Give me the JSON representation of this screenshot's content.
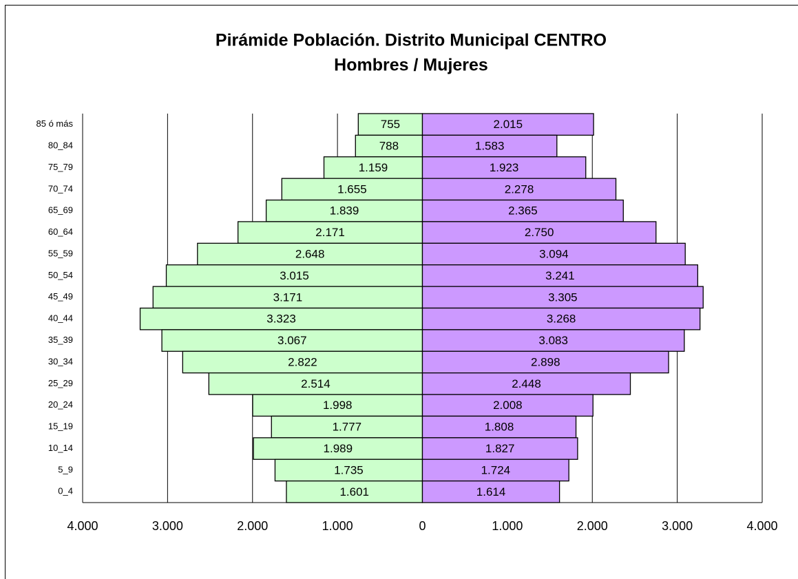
{
  "chart_data": {
    "type": "pyramid",
    "title": "Pirámide Población. Distrito Municipal CENTRO",
    "subtitle": "Hombres / Mujeres",
    "categories": [
      "85 ó más",
      "80_84",
      "75_79",
      "70_74",
      "65_69",
      "60_64",
      "55_59",
      "50_54",
      "45_49",
      "40_44",
      "35_39",
      "30_34",
      "25_29",
      "20_24",
      "15_19",
      "10_14",
      "5_9",
      "0_4"
    ],
    "series": [
      {
        "color": "#ccffcc",
        "direction": "left",
        "values": [
          755,
          788,
          1159,
          1655,
          1839,
          2171,
          2648,
          3015,
          3171,
          3323,
          3067,
          2822,
          2514,
          1998,
          1777,
          1989,
          1735,
          1601
        ],
        "value_labels": [
          "755",
          "788",
          "1.159",
          "1.655",
          "1.839",
          "2.171",
          "2.648",
          "3.015",
          "3.171",
          "3.323",
          "3.067",
          "2.822",
          "2.514",
          "1.998",
          "1.777",
          "1.989",
          "1.735",
          "1.601"
        ]
      },
      {
        "color": "#cc99ff",
        "direction": "right",
        "values": [
          2015,
          1583,
          1923,
          2278,
          2365,
          2750,
          3094,
          3241,
          3305,
          3268,
          3083,
          2898,
          2448,
          2008,
          1808,
          1827,
          1724,
          1614
        ],
        "value_labels": [
          "2.015",
          "1.583",
          "1.923",
          "2.278",
          "2.365",
          "2.750",
          "3.094",
          "3.241",
          "3.305",
          "3.268",
          "3.083",
          "2.898",
          "2.448",
          "2.008",
          "1.808",
          "1.827",
          "1.724",
          "1.614"
        ]
      }
    ],
    "xlim": [
      -4000,
      4000
    ],
    "xticks": [
      {
        "value": -4000,
        "label": "4.000"
      },
      {
        "value": -3000,
        "label": "3.000"
      },
      {
        "value": -2000,
        "label": "2.000"
      },
      {
        "value": -1000,
        "label": "1.000"
      },
      0,
      {
        "value": 1000,
        "label": "1.000"
      },
      {
        "value": 2000,
        "label": "2.000"
      },
      {
        "value": 3000,
        "label": "3.000"
      },
      {
        "value": 4000,
        "label": "4.000"
      }
    ],
    "grid": true
  }
}
